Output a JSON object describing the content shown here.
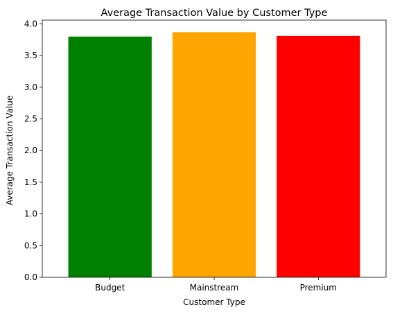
{
  "chart_data": {
    "type": "bar",
    "title": "Average Transaction Value by Customer Type",
    "xlabel": "Customer Type",
    "ylabel": "Average Transaction Value",
    "categories": [
      "Budget",
      "Mainstream",
      "Premium"
    ],
    "values": [
      3.8,
      3.87,
      3.81
    ],
    "colors": [
      "#008000",
      "#ffa500",
      "#ff0000"
    ],
    "ylim": [
      0,
      4.06
    ],
    "yticks": [
      0.0,
      0.5,
      1.0,
      1.5,
      2.0,
      2.5,
      3.0,
      3.5,
      4.0
    ],
    "ytick_labels": [
      "0.0",
      "0.5",
      "1.0",
      "1.5",
      "2.0",
      "2.5",
      "3.0",
      "3.5",
      "4.0"
    ],
    "grid": false,
    "legend": "none"
  }
}
